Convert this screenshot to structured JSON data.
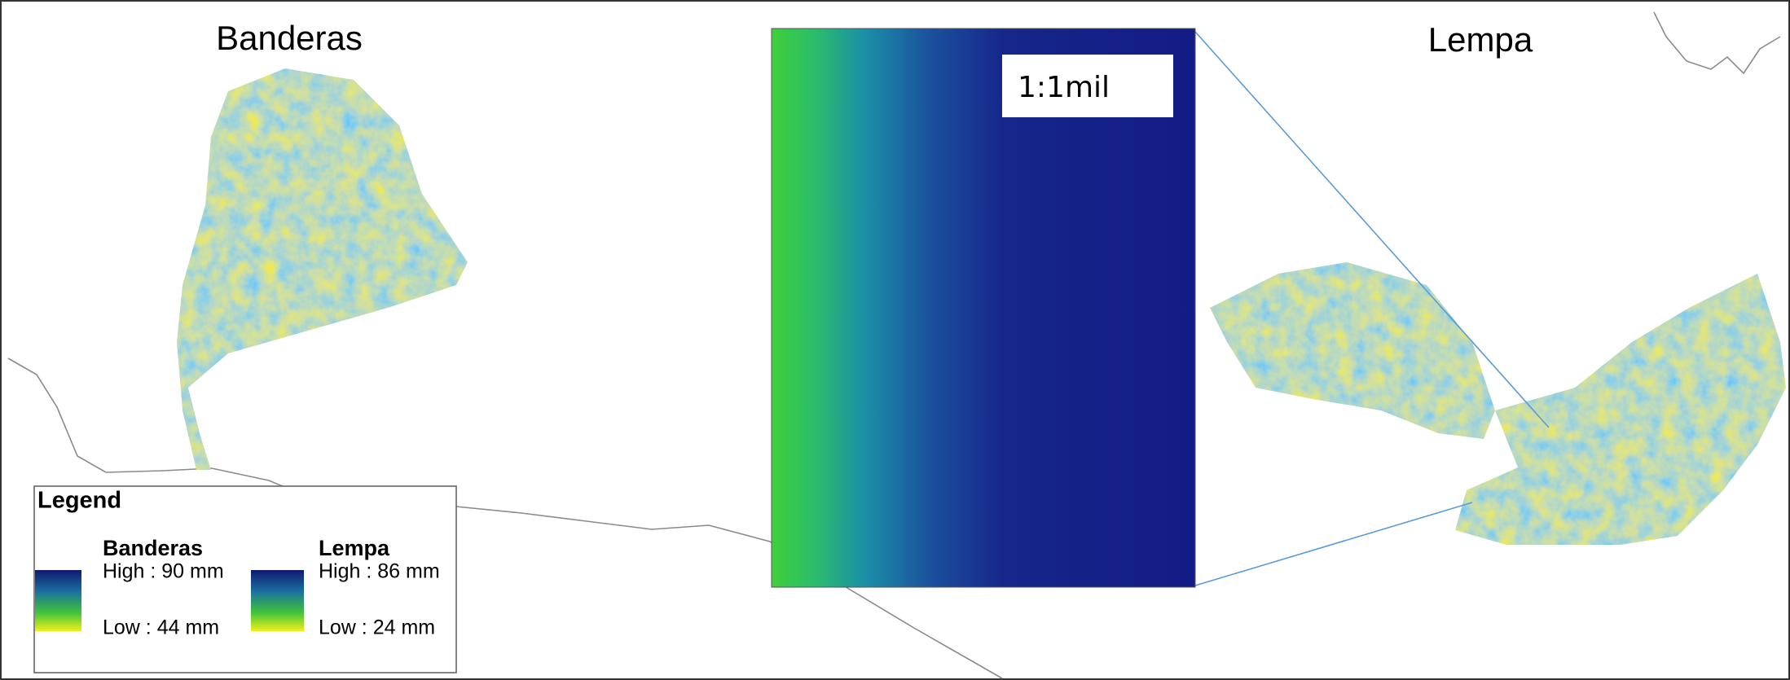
{
  "maps": [
    {
      "title": "Banderas"
    },
    {
      "title": "Lempa"
    }
  ],
  "inset": {
    "scale_label": "1:1mil"
  },
  "legend": {
    "title": "Legend",
    "entries": [
      {
        "name": "Banderas",
        "high": "High : 90 mm",
        "low": "Low : 44 mm"
      },
      {
        "name": "Lempa",
        "high": "High : 86 mm",
        "low": "Low : 24 mm"
      }
    ]
  }
}
